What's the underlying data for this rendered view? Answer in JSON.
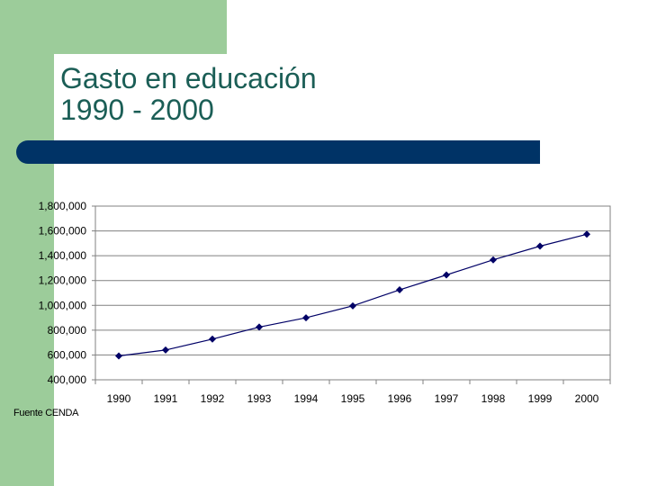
{
  "slide": {
    "title_line1": "Gasto en educación",
    "title_line2": "1990 - 2000",
    "source": "Fuente CENDA"
  },
  "colors": {
    "accent_green": "#9ccc9a",
    "bar_navy": "#003366",
    "title_teal": "#1b5e56",
    "series": "#000066"
  },
  "chart_data": {
    "type": "line",
    "title": "",
    "xlabel": "",
    "ylabel": "",
    "categories": [
      "1990",
      "1991",
      "1992",
      "1993",
      "1994",
      "1995",
      "1996",
      "1997",
      "1998",
      "1999",
      "2000"
    ],
    "series": [
      {
        "values": [
          592000,
          640000,
          728000,
          825000,
          900000,
          996000,
          1125000,
          1245000,
          1367000,
          1477000,
          1573000
        ]
      }
    ],
    "ylim": [
      400000,
      1800000
    ],
    "yticks": [
      "1,800,000",
      "1,600,000",
      "1,400,000",
      "1,200,000",
      "1,000,000",
      "800,000",
      "600,000",
      "400,000"
    ],
    "grid": true,
    "marker": "diamond",
    "legend": "none"
  }
}
